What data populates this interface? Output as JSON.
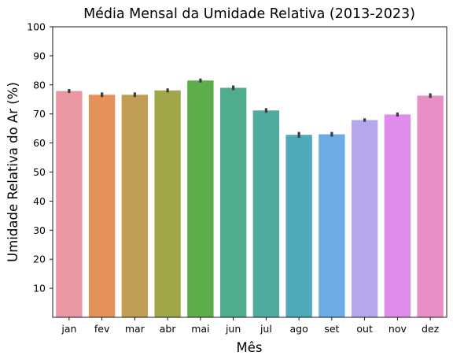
{
  "chart_data": {
    "type": "bar",
    "title": "Média Mensal da Umidade Relativa (2013-2023)",
    "xlabel": "Mês",
    "ylabel": "Umidade Relativa do Ar (%)",
    "ylim": [
      0,
      100
    ],
    "yticks": [
      10,
      20,
      30,
      40,
      50,
      60,
      70,
      80,
      90,
      100
    ],
    "categories": [
      "jan",
      "fev",
      "mar",
      "abr",
      "mai",
      "jun",
      "jul",
      "ago",
      "set",
      "out",
      "nov",
      "dez"
    ],
    "values": [
      77.9,
      76.6,
      76.6,
      78.1,
      81.5,
      79.0,
      71.2,
      62.8,
      63.0,
      67.9,
      69.8,
      76.3
    ],
    "error_low": [
      77.2,
      75.8,
      75.8,
      77.4,
      80.8,
      78.2,
      70.4,
      61.8,
      62.2,
      67.3,
      69.1,
      75.5
    ],
    "error_high": [
      78.6,
      77.4,
      77.4,
      78.8,
      82.2,
      79.8,
      72.0,
      63.8,
      63.8,
      68.5,
      70.5,
      77.1
    ],
    "colors": [
      "#ea97a3",
      "#e49257",
      "#c09d53",
      "#a1a748",
      "#5ead4b",
      "#50ad8b",
      "#4fab9e",
      "#4eaabb",
      "#6cace4",
      "#b6a7ec",
      "#df8ceb",
      "#e88fc7"
    ],
    "grid": false,
    "legend": "none"
  }
}
